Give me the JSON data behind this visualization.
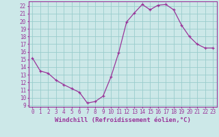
{
  "x": [
    0,
    1,
    2,
    3,
    4,
    5,
    6,
    7,
    8,
    9,
    10,
    11,
    12,
    13,
    14,
    15,
    16,
    17,
    18,
    19,
    20,
    21,
    22,
    23
  ],
  "y": [
    15.2,
    13.5,
    13.2,
    12.3,
    11.7,
    11.2,
    10.7,
    9.3,
    9.5,
    10.2,
    12.7,
    15.9,
    19.9,
    21.1,
    22.2,
    21.5,
    22.1,
    22.2,
    21.5,
    19.5,
    18.0,
    17.0,
    16.5,
    16.5
  ],
  "line_color": "#993399",
  "marker": "+",
  "bg_color": "#cce8e8",
  "grid_color": "#99cccc",
  "xlabel": "Windchill (Refroidissement éolien,°C)",
  "xlim": [
    -0.5,
    23.5
  ],
  "ylim": [
    8.8,
    22.6
  ],
  "yticks": [
    9,
    10,
    11,
    12,
    13,
    14,
    15,
    16,
    17,
    18,
    19,
    20,
    21,
    22
  ],
  "xticks": [
    0,
    1,
    2,
    3,
    4,
    5,
    6,
    7,
    8,
    9,
    10,
    11,
    12,
    13,
    14,
    15,
    16,
    17,
    18,
    19,
    20,
    21,
    22,
    23
  ],
  "tick_label_size": 5.5,
  "xlabel_size": 6.5,
  "axis_color": "#993399",
  "text_color": "#993399"
}
